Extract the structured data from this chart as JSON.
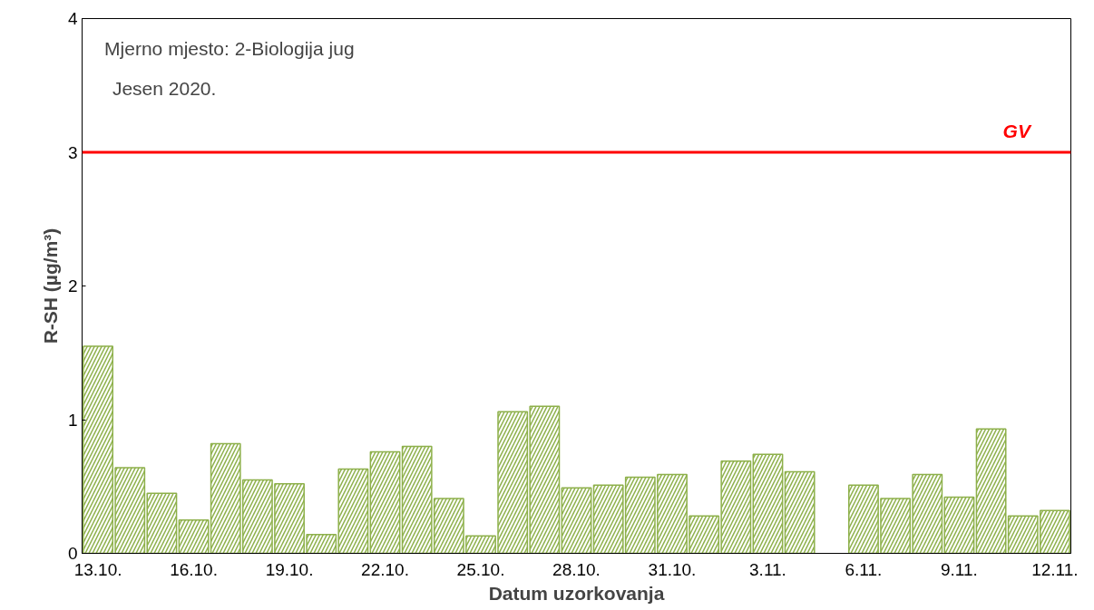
{
  "chart_data": {
    "type": "bar",
    "xlabel": "Datum uzorkovanja",
    "ylabel": "R-SH (µg/m³)",
    "annotations": [
      "Mjerno mjesto: 2-Biologija jug",
      "Jesen 2020."
    ],
    "categories": [
      "13.10.",
      null,
      null,
      "16.10.",
      null,
      null,
      "19.10.",
      null,
      null,
      "22.10.",
      null,
      null,
      "25.10.",
      null,
      null,
      "28.10.",
      null,
      null,
      "31.10.",
      null,
      null,
      "3.11.",
      null,
      null,
      "6.11.",
      null,
      null,
      "9.11.",
      null,
      null,
      "12.11."
    ],
    "series": [
      {
        "color": "#8db04a",
        "values": [
          1.55,
          0.64,
          0.45,
          0.25,
          0.82,
          0.55,
          0.52,
          0.14,
          0.63,
          0.76,
          0.8,
          0.41,
          0.13,
          1.06,
          1.1,
          0.49,
          0.51,
          0.57,
          0.59,
          0.28,
          0.69,
          0.74,
          0.61,
          null,
          0.51,
          0.41,
          0.59,
          0.42,
          0.93,
          0.28,
          0.32
        ]
      }
    ],
    "ylim": [
      0,
      4
    ],
    "yticks": [
      0,
      1,
      2,
      3,
      4
    ],
    "grid": false,
    "ref_lines": [
      {
        "axis": "y",
        "value": 3,
        "label": "GV",
        "color": "#ff0000",
        "line_style": "solid"
      }
    ]
  }
}
